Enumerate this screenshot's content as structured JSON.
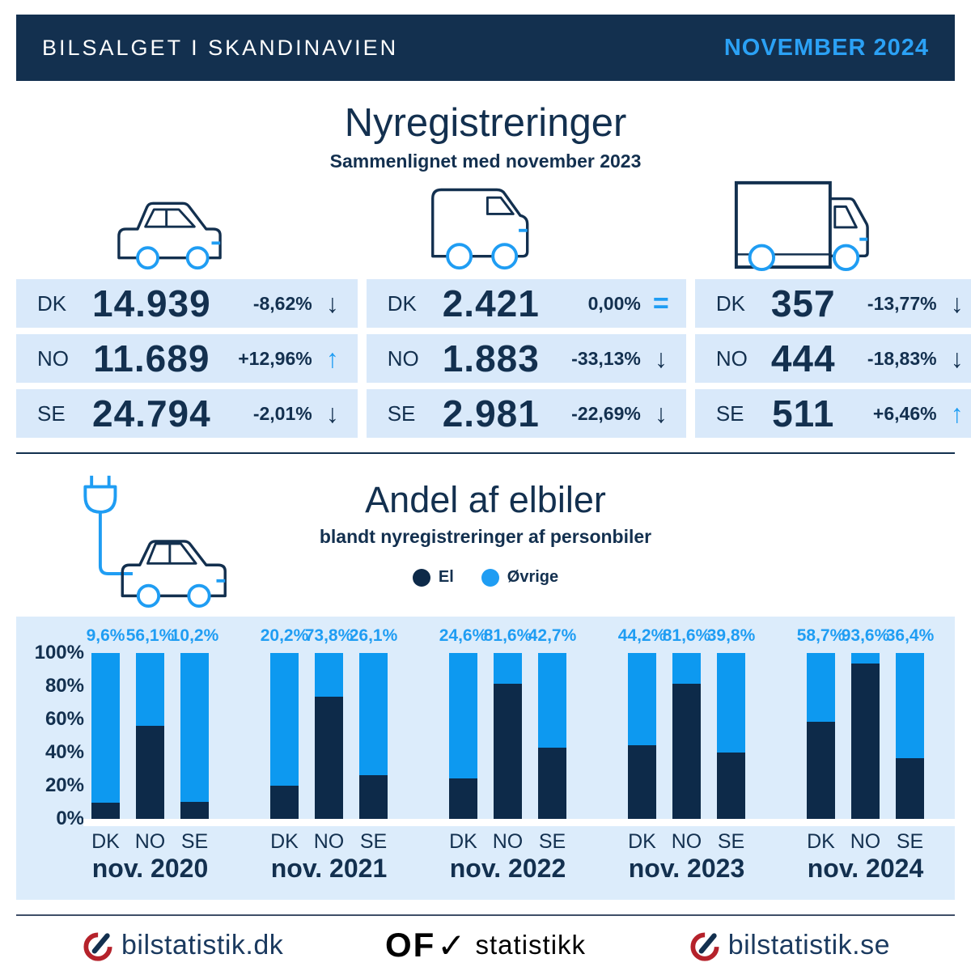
{
  "header": {
    "title": "BILSALGET I SKANDINAVIEN",
    "period": "NOVEMBER 2024"
  },
  "nyregistreringer": {
    "title": "Nyregistreringer",
    "subtitle": "Sammenlignet med november 2023",
    "vehicles": [
      {
        "type": "personbiler",
        "icon": "car-icon",
        "rows": [
          {
            "country": "DK",
            "value": "14.939",
            "change": "-8,62%",
            "direction": "down"
          },
          {
            "country": "NO",
            "value": "11.689",
            "change": "+12,96%",
            "direction": "up"
          },
          {
            "country": "SE",
            "value": "24.794",
            "change": "-2,01%",
            "direction": "down"
          }
        ]
      },
      {
        "type": "varebiler",
        "icon": "van-icon",
        "rows": [
          {
            "country": "DK",
            "value": "2.421",
            "change": "0,00%",
            "direction": "equal"
          },
          {
            "country": "NO",
            "value": "1.883",
            "change": "-33,13%",
            "direction": "down"
          },
          {
            "country": "SE",
            "value": "2.981",
            "change": "-22,69%",
            "direction": "down"
          }
        ]
      },
      {
        "type": "lastbiler",
        "icon": "truck-icon",
        "rows": [
          {
            "country": "DK",
            "value": "357",
            "change": "-13,77%",
            "direction": "down"
          },
          {
            "country": "NO",
            "value": "444",
            "change": "-18,83%",
            "direction": "down"
          },
          {
            "country": "SE",
            "value": "511",
            "change": "+6,46%",
            "direction": "up"
          }
        ]
      }
    ]
  },
  "elbiler": {
    "title": "Andel af elbiler",
    "subtitle": "blandt nyregistreringer af personbiler",
    "legend": [
      {
        "label": "El",
        "color": "#0d2a49"
      },
      {
        "label": "Øvrige",
        "color": "#1f9df3"
      }
    ]
  },
  "chart_data": {
    "type": "bar",
    "stacked": true,
    "title": "Andel af elbiler blandt nyregistreringer af personbiler",
    "ylabel": "",
    "xlabel": "",
    "ylim": [
      0,
      100
    ],
    "unit": "%",
    "grid": false,
    "y_ticks": [
      "100%",
      "80%",
      "60%",
      "40%",
      "20%",
      "0%"
    ],
    "bar_categories": [
      "DK",
      "NO",
      "SE"
    ],
    "series_names": [
      "El",
      "Øvrige"
    ],
    "colors": {
      "El": "#0d2a49",
      "Øvrige": "#0d99f0"
    },
    "groups": [
      {
        "label": "nov. 2020",
        "el_share": [
          9.6,
          56.1,
          10.2
        ],
        "labels": [
          "9,6%",
          "56,1%",
          "10,2%"
        ]
      },
      {
        "label": "nov. 2021",
        "el_share": [
          20.2,
          73.8,
          26.1
        ],
        "labels": [
          "20,2%",
          "73,8%",
          "26,1%"
        ]
      },
      {
        "label": "nov. 2022",
        "el_share": [
          24.6,
          81.6,
          42.7
        ],
        "labels": [
          "24,6%",
          "81,6%",
          "42,7%"
        ]
      },
      {
        "label": "nov. 2023",
        "el_share": [
          44.2,
          81.6,
          39.8
        ],
        "labels": [
          "44,2%",
          "81,6%",
          "39,8%"
        ]
      },
      {
        "label": "nov. 2024",
        "el_share": [
          58.7,
          93.6,
          36.4
        ],
        "labels": [
          "58,7%",
          "93,6%",
          "36,4%"
        ]
      }
    ]
  },
  "footer": {
    "left_label": "bilstatistik.dk",
    "center": {
      "of": "OF",
      "check": "✓",
      "label": "statistikk"
    },
    "right_label": "bilstatistik.se"
  }
}
